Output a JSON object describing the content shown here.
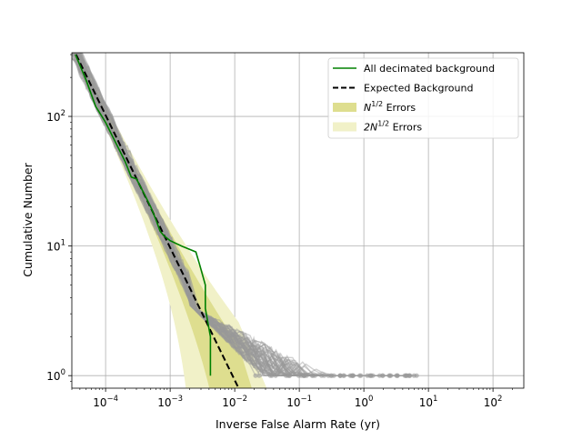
{
  "chart_data": {
    "type": "line",
    "title": "",
    "xlabel": "Inverse False Alarm Rate (yr)",
    "ylabel": "Cumulative Number",
    "xscale": "log",
    "yscale": "log",
    "xlim": [
      3e-05,
      300
    ],
    "ylim": [
      0.8,
      310
    ],
    "grid": true,
    "legend_position": "top-right",
    "x_tick_values": [
      0.0001,
      0.001,
      0.01,
      0.1,
      1,
      10,
      100
    ],
    "x_tick_labels": [
      {
        "base": "10",
        "exp": "−4"
      },
      {
        "base": "10",
        "exp": "−3"
      },
      {
        "base": "10",
        "exp": "−2"
      },
      {
        "base": "10",
        "exp": "−1"
      },
      {
        "base": "10",
        "exp": "0"
      },
      {
        "base": "10",
        "exp": "1"
      },
      {
        "base": "10",
        "exp": "2"
      }
    ],
    "y_tick_values": [
      1,
      10,
      100
    ],
    "y_tick_labels": [
      {
        "base": "10",
        "exp": "0"
      },
      {
        "base": "10",
        "exp": "1"
      },
      {
        "base": "10",
        "exp": "2"
      }
    ],
    "legend": [
      {
        "kind": "line",
        "label": "All decimated background",
        "color": "#008000",
        "dash": false
      },
      {
        "kind": "line",
        "label": "Expected Background",
        "color": "#000000",
        "dash": true
      },
      {
        "kind": "patch",
        "label_main": "N",
        "label_sup": "1/2",
        "label_rest": " Errors",
        "color": "#dede8f"
      },
      {
        "kind": "patch",
        "label_main": "2N",
        "label_sup": "1/2",
        "label_rest": " Errors",
        "color": "#f1f1c8"
      }
    ],
    "colors": {
      "decimated": "#008000",
      "expected": "#000000",
      "background_traces": "#999999",
      "band_1sigma": "#dede8f",
      "band_2sigma": "#f1f1c8"
    },
    "series": [
      {
        "name": "All decimated background",
        "points": [
          [
            3.4e-05,
            300
          ],
          [
            5e-05,
            190
          ],
          [
            7e-05,
            120
          ],
          [
            0.0001,
            90
          ],
          [
            0.00015,
            60
          ],
          [
            0.0002,
            45
          ],
          [
            0.00025,
            34
          ],
          [
            0.0003,
            33
          ],
          [
            0.0004,
            25
          ],
          [
            0.0005,
            20
          ],
          [
            0.0006,
            16
          ],
          [
            0.0007,
            13
          ],
          [
            0.0008,
            12
          ],
          [
            0.001,
            11
          ],
          [
            0.0015,
            10
          ],
          [
            0.0025,
            9
          ],
          [
            0.0029,
            7
          ],
          [
            0.0035,
            5
          ],
          [
            0.0035,
            3.3
          ],
          [
            0.0042,
            2
          ],
          [
            0.0042,
            1
          ]
        ]
      },
      {
        "name": "Expected Background",
        "points": [
          [
            3e-05,
            350
          ],
          [
            0.0115,
            0.8
          ]
        ]
      }
    ],
    "background_trace_count": 60,
    "background_trace_endpoints_x": [
      0.03,
      0.06,
      0.1,
      0.15,
      0.2,
      0.3,
      0.4,
      0.6,
      0.8,
      1.2,
      1.7,
      2.5,
      3.5,
      4.5,
      5.5
    ]
  }
}
